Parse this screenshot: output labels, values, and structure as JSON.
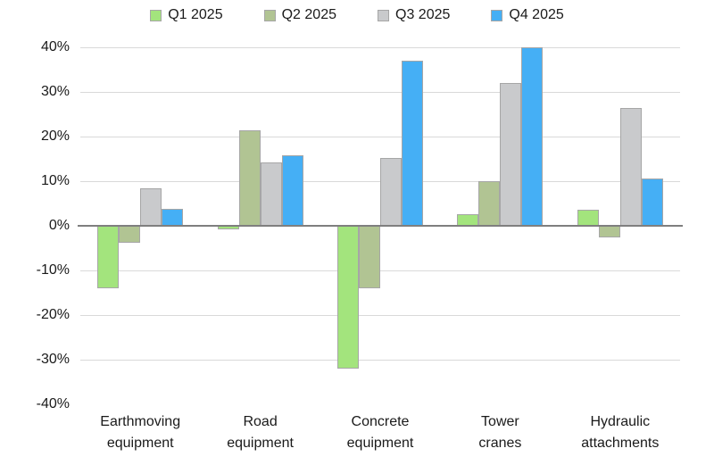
{
  "chart_data": {
    "type": "bar",
    "title": "",
    "categories": [
      "Earthmoving\nequipment",
      "Road\nequipment",
      "Concrete\nequipment",
      "Tower\ncranes",
      "Hydraulic\nattachments"
    ],
    "series": [
      {
        "name": "Q1 2025",
        "color": "#a3e47d",
        "values": [
          -14,
          -0.7,
          -32,
          2.7,
          3.7
        ]
      },
      {
        "name": "Q2 2025",
        "color": "#b1c493",
        "values": [
          -3.8,
          21.5,
          -14,
          10,
          -2.5
        ]
      },
      {
        "name": "Q3 2025",
        "color": "#c9cacc",
        "values": [
          8.4,
          14.3,
          15.2,
          32,
          26.4
        ]
      },
      {
        "name": "Q4 2025",
        "color": "#45aff5",
        "values": [
          3.8,
          15.8,
          37,
          40,
          10.7
        ]
      }
    ],
    "xlabel": "",
    "ylabel": "",
    "y_axis": {
      "min": -40,
      "max": 40,
      "step": 10,
      "tick_labels": [
        "40%",
        "30%",
        "20%",
        "10%",
        "0%",
        "-10%",
        "-20%",
        "-30%",
        "-40%"
      ]
    },
    "legend_position": "top",
    "grid": true,
    "gridline_color": "#d9d9d9",
    "axis_line_color": "#7f7f7f",
    "bar_border_color": "#a6a6a6",
    "text_color": "#1a1a1a"
  }
}
